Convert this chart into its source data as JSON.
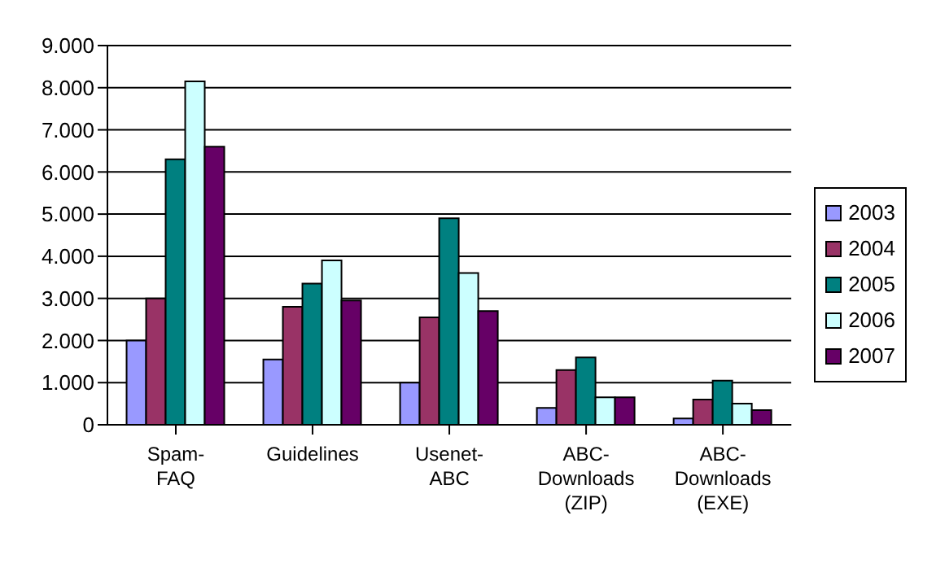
{
  "chart_data": {
    "type": "bar",
    "categories": [
      "Spam-FAQ",
      "Guidelines",
      "Usenet-ABC",
      "ABC-Downloads (ZIP)",
      "ABC-Downloads (EXE)"
    ],
    "series": [
      {
        "name": "2003",
        "color": "#9999ff",
        "values": [
          2000,
          1550,
          1000,
          400,
          150
        ]
      },
      {
        "name": "2004",
        "color": "#993366",
        "values": [
          3000,
          2800,
          2550,
          1300,
          600
        ]
      },
      {
        "name": "2005",
        "color": "#008080",
        "values": [
          6300,
          3350,
          4900,
          1600,
          1050
        ]
      },
      {
        "name": "2006",
        "color": "#ccffff",
        "values": [
          8150,
          3900,
          3600,
          650,
          500
        ]
      },
      {
        "name": "2007",
        "color": "#660066",
        "values": [
          6600,
          2950,
          2700,
          650,
          350
        ]
      }
    ],
    "ylim": [
      0,
      9000
    ],
    "yticks": [
      0,
      {
        "value": 1000,
        "label": "1.000"
      },
      {
        "value": 2000,
        "label": "2.000"
      },
      {
        "value": 3000,
        "label": "3.000"
      },
      {
        "value": 4000,
        "label": "4.000"
      },
      {
        "value": 5000,
        "label": "5.000"
      },
      {
        "value": 6000,
        "label": "6.000"
      },
      {
        "value": 7000,
        "label": "7.000"
      },
      {
        "value": 8000,
        "label": "8.000"
      },
      {
        "value": 9000,
        "label": "9.000"
      }
    ],
    "grid": "y",
    "legend": "right"
  }
}
